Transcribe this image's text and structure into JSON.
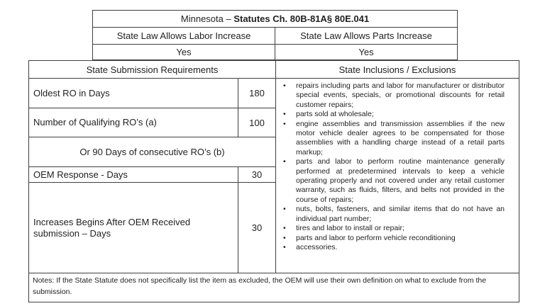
{
  "header": {
    "title_regular": "Minnesota – ",
    "title_bold": "Statutes Ch. 80B-81A§ 80E.041",
    "columns": [
      {
        "label": "State Law Allows Labor Increase",
        "value": "Yes"
      },
      {
        "label": "State Law Allows Parts Increase",
        "value": "Yes"
      }
    ]
  },
  "submission": {
    "title": "State Submission Requirements",
    "rows": [
      {
        "label": "Oldest RO in Days",
        "value": "180"
      },
      {
        "label": "Number of Qualifying RO’s (a)",
        "value": "100"
      },
      {
        "label": "OEM Response - Days",
        "value": "30"
      },
      {
        "label": "Increases Begins After OEM Received submission – Days",
        "value": "30"
      }
    ],
    "span_row": "Or 90 Days of consecutive RO’s (b)"
  },
  "inclusions": {
    "title": "State Inclusions / Exclusions",
    "bullets": [
      "repairs including parts and labor for manufacturer or distributor special events, specials, or promotional discounts for retail customer repairs;",
      "parts sold at wholesale;",
      "engine assemblies and transmission assemblies if the new motor vehicle dealer agrees to be compensated for those assemblies with a handling charge instead of a retail parts markup;",
      "parts and labor to perform routine maintenance generally performed at predetermined intervals to keep a vehicle operating properly and not covered under any retail customer warranty, such as fluids, filters, and belts not provided in the course of repairs;",
      "nuts, bolts, fasteners, and similar items that do not have an individual part number;",
      "tires and labor to install or repair;",
      "parts and labor to perform vehicle reconditioning",
      "accessories."
    ]
  },
  "notes": "Notes: If the State Statute does not specifically list the item as excluded, the OEM will use their own definition on what to exclude from the submission."
}
